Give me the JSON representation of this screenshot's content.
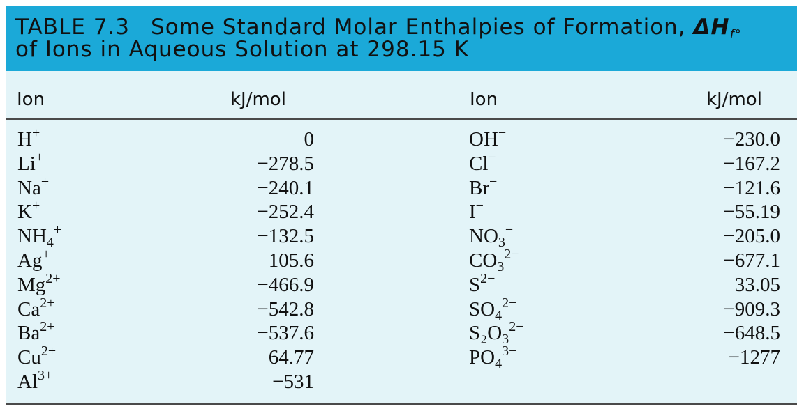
{
  "title": {
    "label": "TABLE 7.3",
    "line1": "Some Standard Molar Enthalpies of Formation, ",
    "symbol": "ΔH",
    "symbol_sub": "f°",
    "line2": "of Ions in Aqueous Solution at 298.15 K"
  },
  "columns": {
    "ion": "Ion",
    "unit": "kJ/mol"
  },
  "left_rows": [
    {
      "ion": "H",
      "sub": "",
      "sup": "+",
      "value": "0"
    },
    {
      "ion": "Li",
      "sub": "",
      "sup": "+",
      "value": "−278.5"
    },
    {
      "ion": "Na",
      "sub": "",
      "sup": "+",
      "value": "−240.1"
    },
    {
      "ion": "K",
      "sub": "",
      "sup": "+",
      "value": "−252.4"
    },
    {
      "ion": "NH",
      "sub": "4",
      "sup": "+",
      "value": "−132.5"
    },
    {
      "ion": "Ag",
      "sub": "",
      "sup": "+",
      "value": "105.6"
    },
    {
      "ion": "Mg",
      "sub": "",
      "sup": "2+",
      "value": "−466.9"
    },
    {
      "ion": "Ca",
      "sub": "",
      "sup": "2+",
      "value": "−542.8"
    },
    {
      "ion": "Ba",
      "sub": "",
      "sup": "2+",
      "value": "−537.6"
    },
    {
      "ion": "Cu",
      "sub": "",
      "sup": "2+",
      "value": "64.77"
    },
    {
      "ion": "Al",
      "sub": "",
      "sup": "3+",
      "value": "−531"
    }
  ],
  "right_rows": [
    {
      "ion": "OH",
      "sub": "",
      "sup": "−",
      "value": "−230.0"
    },
    {
      "ion": "Cl",
      "sub": "",
      "sup": "−",
      "value": "−167.2"
    },
    {
      "ion": "Br",
      "sub": "",
      "sup": "−",
      "value": "−121.6"
    },
    {
      "ion": "I",
      "sub": "",
      "sup": "−",
      "value": "−55.19"
    },
    {
      "ion": "NO",
      "sub": "3",
      "sup": "−",
      "value": "−205.0"
    },
    {
      "ion": "CO",
      "sub": "3",
      "sup": "2−",
      "value": "−677.1"
    },
    {
      "ion": "S",
      "sub": "",
      "sup": "2−",
      "value": "33.05"
    },
    {
      "ion": "SO",
      "sub": "4",
      "sup": "2−",
      "value": "−909.3"
    },
    {
      "ion": "S₂O",
      "sub": "3",
      "sup": "2−",
      "value": "−648.5"
    },
    {
      "ion": "PO",
      "sub": "4",
      "sup": "3−",
      "value": "−1277"
    }
  ]
}
